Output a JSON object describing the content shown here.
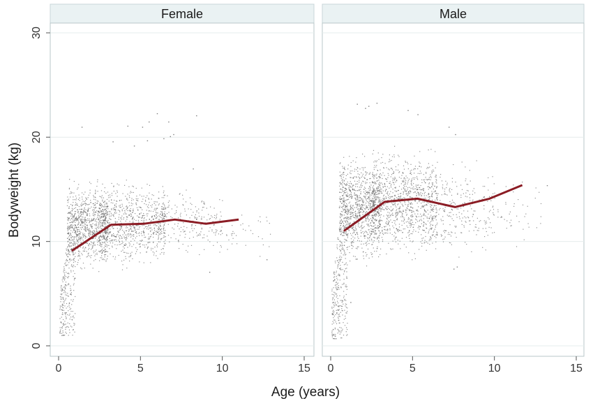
{
  "chart_data": {
    "type": "scatter",
    "xlabel": "Age (years)",
    "ylabel": "Bodyweight (kg)",
    "xlim": [
      0,
      15
    ],
    "ylim": [
      0,
      30
    ],
    "x_ticks": [
      0,
      5,
      10,
      15
    ],
    "y_ticks": [
      0,
      10,
      20,
      30
    ],
    "grid": "horizontal",
    "panels": [
      {
        "title": "Female",
        "line": {
          "x": [
            0.8,
            3.2,
            5.2,
            7.1,
            9.0,
            11.0
          ],
          "y": [
            9.1,
            11.6,
            11.7,
            12.1,
            11.7,
            12.1
          ]
        },
        "scatter_clusters": [
          {
            "x": [
              0.05,
              1.0
            ],
            "y": [
              1.0,
              12.0
            ],
            "n": 260
          },
          {
            "x": [
              0.5,
              3.0
            ],
            "y": [
              6.5,
              16.5
            ],
            "n": 900
          },
          {
            "x": [
              2.5,
              6.5
            ],
            "y": [
              7.0,
              16.5
            ],
            "n": 800
          },
          {
            "x": [
              6.0,
              10.0
            ],
            "y": [
              8.0,
              16.0
            ],
            "n": 220
          },
          {
            "x": [
              9.5,
              13.0
            ],
            "y": [
              8.0,
              13.5
            ],
            "n": 40
          }
        ],
        "outliers": [
          [
            1.4,
            21.0
          ],
          [
            4.2,
            21.1
          ],
          [
            5.1,
            21.0
          ],
          [
            5.5,
            21.5
          ],
          [
            6.0,
            22.3
          ],
          [
            6.7,
            21.5
          ],
          [
            5.4,
            19.7
          ],
          [
            6.4,
            19.9
          ],
          [
            6.8,
            20.1
          ],
          [
            7.0,
            20.3
          ],
          [
            8.4,
            22.1
          ],
          [
            3.3,
            19.6
          ],
          [
            4.6,
            19.2
          ],
          [
            8.2,
            17.0
          ],
          [
            12.7,
            8.3
          ],
          [
            9.2,
            7.1
          ]
        ]
      },
      {
        "title": "Male",
        "line": {
          "x": [
            0.8,
            3.3,
            5.3,
            7.6,
            9.7,
            11.7
          ],
          "y": [
            11.0,
            13.8,
            14.1,
            13.3,
            14.1,
            15.4
          ]
        },
        "scatter_clusters": [
          {
            "x": [
              0.05,
              1.0
            ],
            "y": [
              0.7,
              14.0
            ],
            "n": 300
          },
          {
            "x": [
              0.5,
              3.0
            ],
            "y": [
              7.0,
              19.5
            ],
            "n": 1000
          },
          {
            "x": [
              2.5,
              6.5
            ],
            "y": [
              7.5,
              20.0
            ],
            "n": 1000
          },
          {
            "x": [
              6.0,
              10.0
            ],
            "y": [
              7.5,
              18.5
            ],
            "n": 260
          },
          {
            "x": [
              9.5,
              13.0
            ],
            "y": [
              9.0,
              17.0
            ],
            "n": 50
          }
        ],
        "outliers": [
          [
            1.6,
            23.2
          ],
          [
            2.3,
            23.0
          ],
          [
            2.8,
            23.3
          ],
          [
            4.7,
            22.6
          ],
          [
            5.3,
            22.2
          ],
          [
            2.1,
            22.8
          ],
          [
            7.2,
            21.0
          ],
          [
            7.6,
            20.3
          ],
          [
            13.2,
            15.4
          ],
          [
            1.2,
            4.2
          ],
          [
            7.5,
            7.4
          ],
          [
            7.7,
            7.6
          ]
        ]
      }
    ]
  }
}
